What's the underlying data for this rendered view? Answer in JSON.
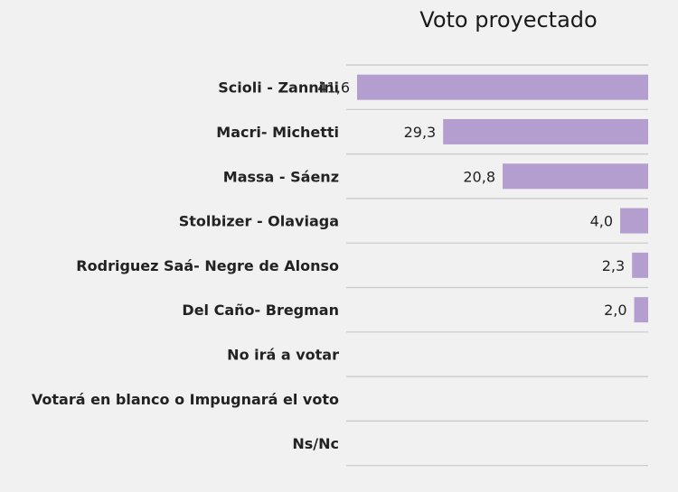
{
  "chart_data": {
    "type": "bar",
    "orientation": "horizontal",
    "title": "Voto proyectado",
    "categories": [
      "Scioli - Zannini",
      "Macri- Michetti",
      "Massa - Sáenz",
      "Stolbizer - Olaviaga",
      "Rodriguez Saá- Negre de Alonso",
      "Del Caño- Bregman",
      "No irá a votar",
      "Votará en blanco o Impugnará el voto",
      "Ns/Nc"
    ],
    "values": [
      41.6,
      29.3,
      20.8,
      4.0,
      2.3,
      2.0,
      null,
      null,
      null
    ],
    "value_labels": [
      "41,6",
      "29,3",
      "20,8",
      "4,0",
      "2,3",
      "2,0",
      "",
      "",
      ""
    ],
    "xlim": [
      0,
      41.6
    ],
    "grid": true,
    "colors": {
      "bar": "#b39ecf",
      "grid": "#c8c8c8",
      "background": "#f1f1f1"
    }
  }
}
